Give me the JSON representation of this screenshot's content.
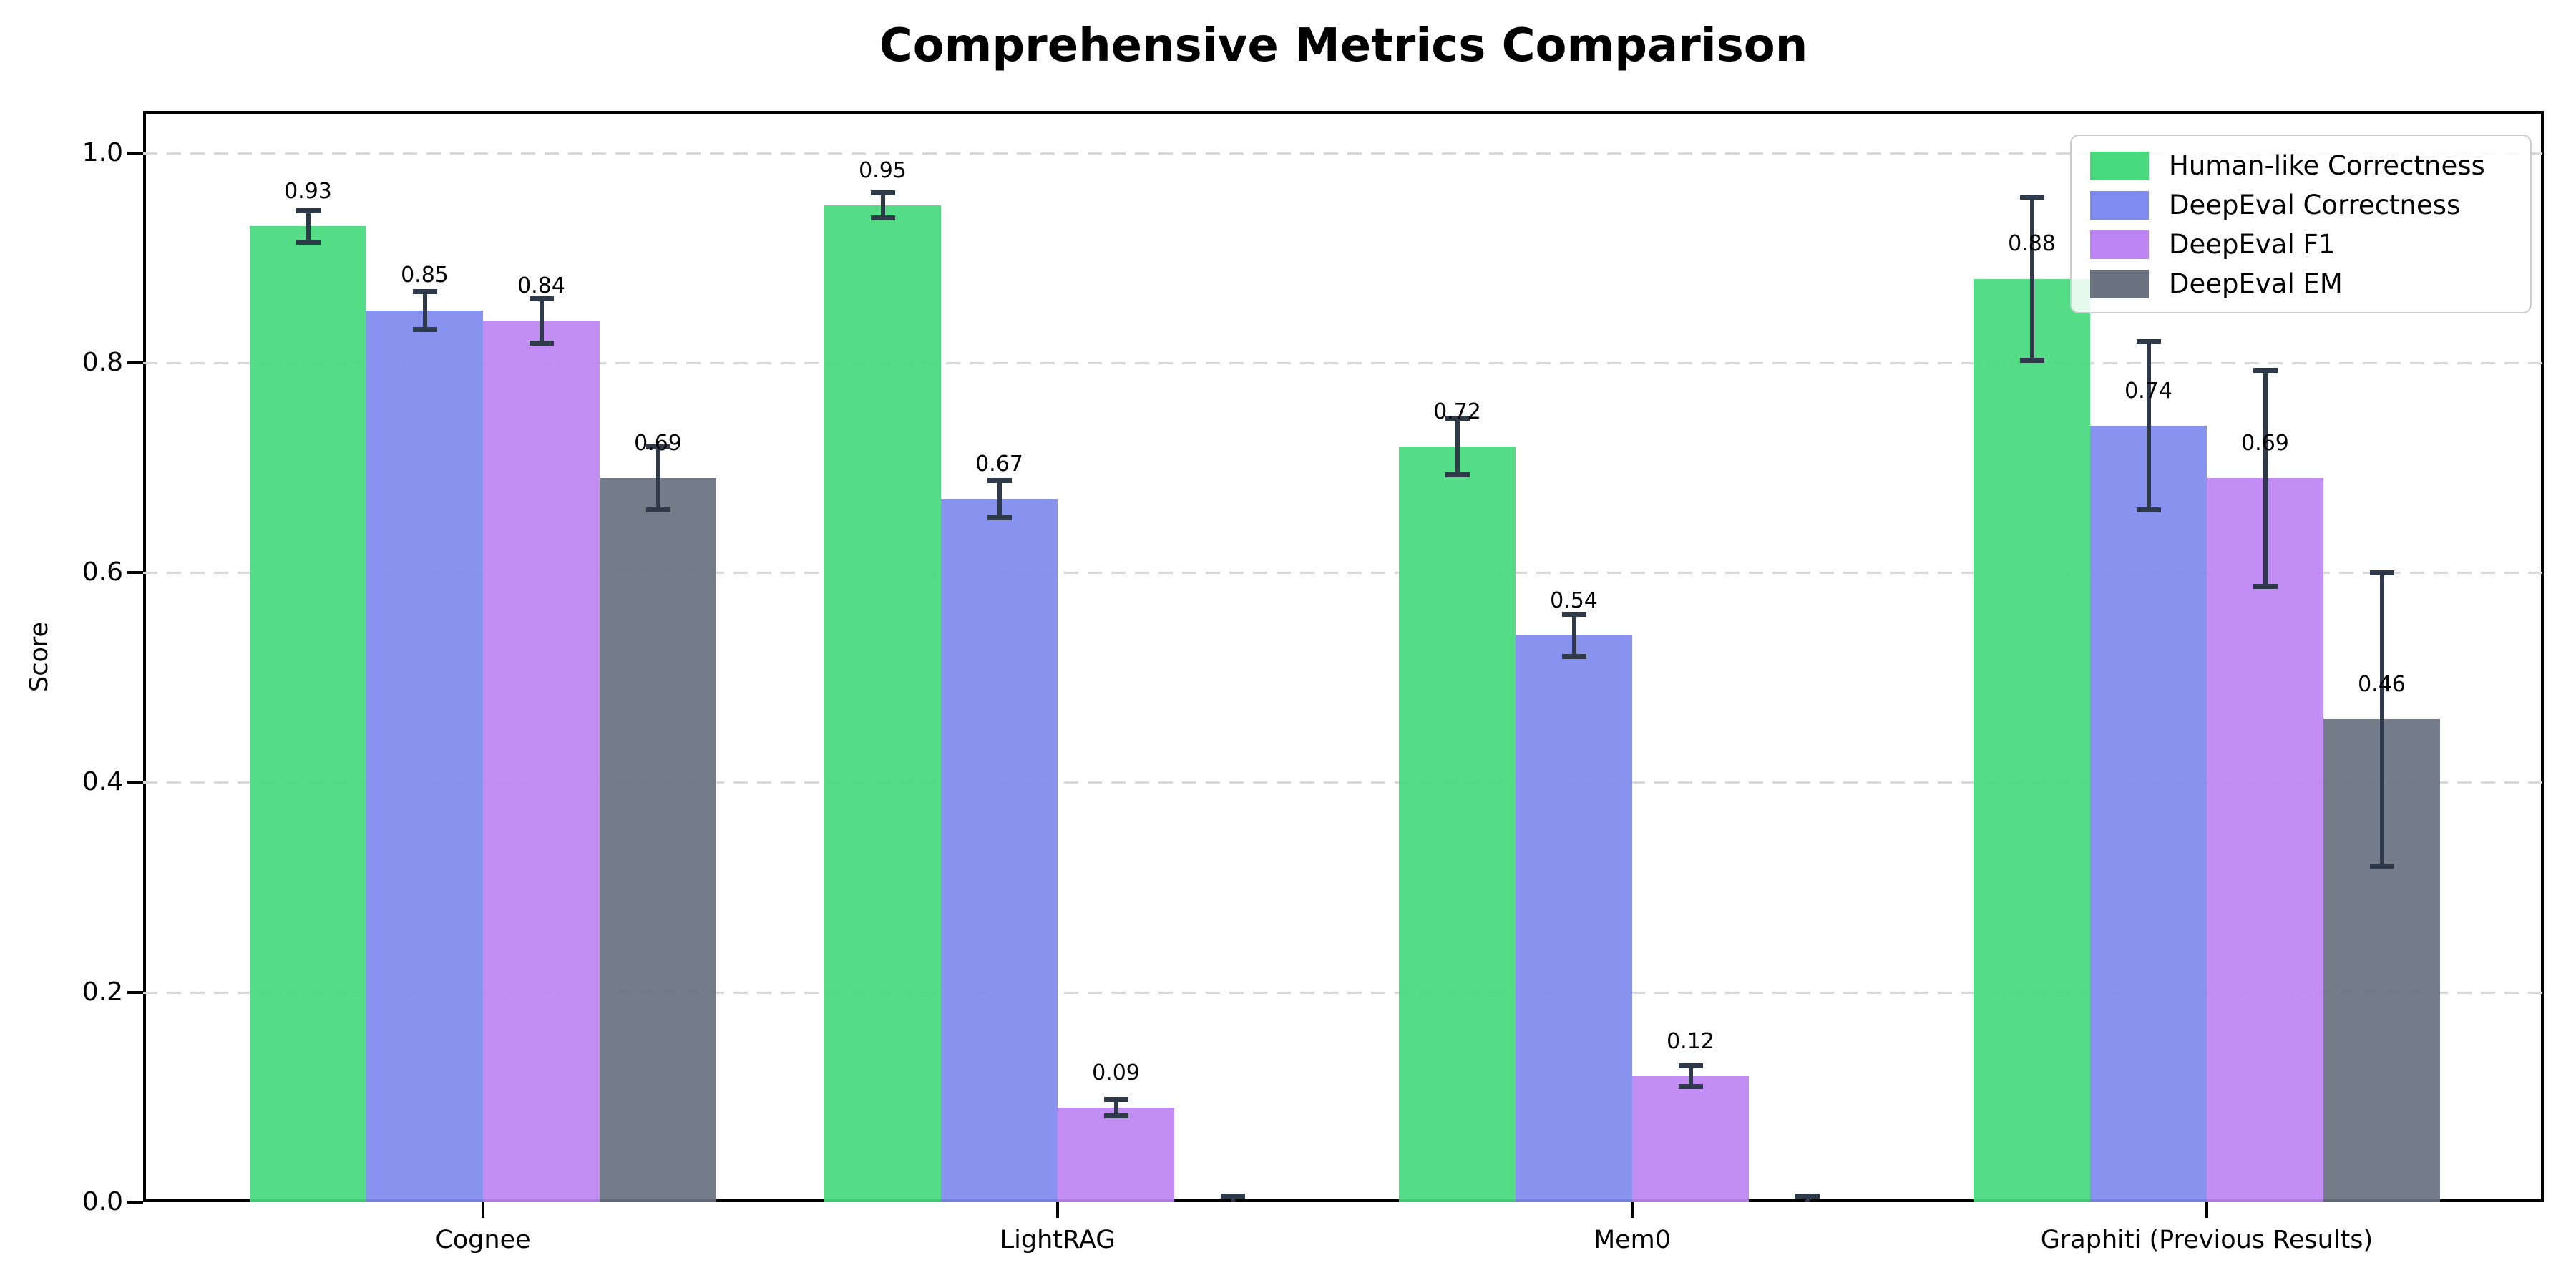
{
  "figure": {
    "background": "#ffffff"
  },
  "chart_data": {
    "type": "bar",
    "title": "Comprehensive Metrics Comparison",
    "xlabel": "",
    "ylabel": "Score",
    "categories": [
      "Cognee",
      "LightRAG",
      "Mem0",
      "Graphiti (Previous Results)"
    ],
    "series": [
      {
        "name": "Human-like Correctness",
        "color": "#47d97e",
        "values": [
          0.93,
          0.95,
          0.72,
          0.88
        ],
        "errors": [
          0.015,
          0.012,
          0.027,
          0.078
        ],
        "bar_labels": [
          "0.93",
          "0.95",
          "0.72",
          "0.88"
        ]
      },
      {
        "name": "DeepEval Correctness",
        "color": "#7f8bef",
        "values": [
          0.85,
          0.67,
          0.54,
          0.74
        ],
        "errors": [
          0.018,
          0.018,
          0.02,
          0.08
        ],
        "bar_labels": [
          "0.85",
          "0.67",
          "0.54",
          "0.74"
        ]
      },
      {
        "name": "DeepEval F1",
        "color": "#bd85f3",
        "values": [
          0.84,
          0.09,
          0.12,
          0.69
        ],
        "errors": [
          0.021,
          0.008,
          0.01,
          0.103
        ],
        "bar_labels": [
          "0.84",
          "0.09",
          "0.12",
          "0.69"
        ]
      },
      {
        "name": "DeepEval EM",
        "color": "#6a7280",
        "values": [
          0.69,
          0.0,
          0.0,
          0.46
        ],
        "errors": [
          0.03,
          0.006,
          0.006,
          0.14
        ],
        "bar_labels": [
          "0.69",
          "",
          "",
          "0.46"
        ]
      }
    ],
    "ylim": [
      0,
      1.04
    ],
    "yticks": [
      0,
      0.2,
      0.4,
      0.6,
      0.8,
      1.0
    ],
    "ytick_labels": [
      "0.0",
      "0.2",
      "0.4",
      "0.6",
      "0.8",
      "1.0"
    ],
    "grid": {
      "axis": "y",
      "style": "dashed",
      "color": "#d9d9d9"
    },
    "error_bar_color": "#2e3a4a",
    "legend": {
      "position": "upper right",
      "entries": [
        "Human-like Correctness",
        "DeepEval Correctness",
        "DeepEval F1",
        "DeepEval EM"
      ]
    }
  }
}
